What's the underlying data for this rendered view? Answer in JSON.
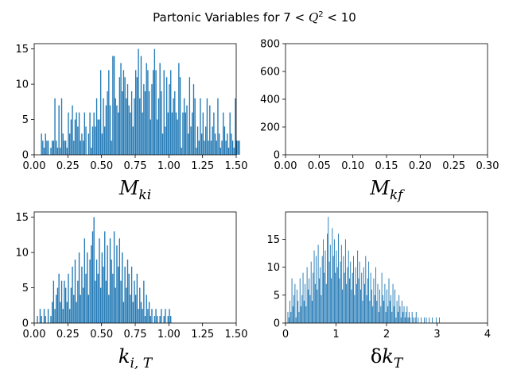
{
  "figure": {
    "title_pre": "Partonic Variables for 7 < ",
    "title_q": "Q",
    "title_sup": "2",
    "title_post": " < 10"
  },
  "chart_data": [
    {
      "type": "bar",
      "label_main": "M",
      "label_sub": "ki",
      "xlim": [
        0,
        1.5
      ],
      "ylim": [
        0,
        15.75
      ],
      "xticks": [
        "0.00",
        "0.25",
        "0.50",
        "0.75",
        "1.00",
        "1.25",
        "1.50"
      ],
      "yticks": [
        "0",
        "5",
        "10",
        "15"
      ],
      "bin_start": 0.05,
      "bin_width": 0.01,
      "values": [
        3,
        2,
        1,
        3,
        2,
        2,
        0,
        1,
        2,
        2,
        8,
        2,
        1,
        7,
        1,
        8,
        3,
        2,
        2,
        1,
        6,
        3,
        5,
        7,
        2,
        5,
        6,
        4,
        6,
        2,
        3,
        2,
        6,
        4,
        0,
        3,
        6,
        1,
        4,
        6,
        4,
        8,
        5,
        5,
        12,
        3,
        8,
        4,
        7,
        9,
        12,
        7,
        2,
        14,
        14,
        8,
        7,
        6,
        11,
        13,
        9,
        12,
        11,
        8,
        10,
        7,
        6,
        9,
        4,
        8,
        12,
        11,
        15,
        8,
        14,
        6,
        10,
        9,
        13,
        12,
        9,
        5,
        10,
        12,
        15,
        12,
        5,
        8,
        13,
        9,
        3,
        12,
        4,
        11,
        6,
        10,
        12,
        6,
        8,
        9,
        6,
        5,
        13,
        11,
        1,
        6,
        8,
        6,
        7,
        3,
        11,
        4,
        6,
        10,
        8,
        1,
        4,
        2,
        8,
        3,
        6,
        2,
        4,
        8,
        2,
        7,
        2,
        4,
        6,
        3,
        2,
        8,
        3,
        1,
        2,
        6,
        4,
        2,
        3,
        1,
        6,
        3,
        2,
        1,
        8,
        2,
        2,
        2
      ]
    },
    {
      "type": "bar",
      "label_main": "M",
      "label_sub": "kf",
      "xlim": [
        0,
        0.3
      ],
      "ylim": [
        0,
        800
      ],
      "xticks": [
        "0.00",
        "0.05",
        "0.10",
        "0.15",
        "0.20",
        "0.25",
        "0.30"
      ],
      "yticks": [
        "0",
        "200",
        "400",
        "600",
        "800"
      ],
      "bin_start": 0,
      "bin_width": 0.01,
      "values": []
    },
    {
      "type": "bar",
      "label_main": "k",
      "label_sub": "i, T",
      "xlim": [
        0,
        1.5
      ],
      "ylim": [
        0,
        15.75
      ],
      "xticks": [
        "0.00",
        "0.25",
        "0.50",
        "0.75",
        "1.00",
        "1.25",
        "1.50"
      ],
      "yticks": [
        "0",
        "5",
        "10",
        "15"
      ],
      "bin_start": 0.02,
      "bin_width": 0.01,
      "values": [
        1,
        0,
        2,
        1,
        0,
        2,
        1,
        0,
        2,
        0,
        1,
        3,
        6,
        2,
        4,
        5,
        7,
        3,
        6,
        2,
        6,
        5,
        3,
        7,
        2,
        5,
        8,
        4,
        9,
        3,
        6,
        10,
        4,
        8,
        5,
        12,
        7,
        10,
        4,
        9,
        11,
        13,
        15,
        6,
        9,
        7,
        12,
        5,
        10,
        8,
        13,
        6,
        11,
        4,
        12,
        9,
        7,
        13,
        5,
        11,
        8,
        12,
        6,
        10,
        3,
        8,
        5,
        9,
        7,
        4,
        8,
        3,
        6,
        4,
        7,
        2,
        5,
        3,
        2,
        6,
        1,
        4,
        2,
        3,
        1,
        2,
        0,
        1,
        2,
        1,
        0,
        1,
        2,
        0,
        1,
        2,
        0,
        1,
        2,
        1
      ]
    },
    {
      "type": "bar",
      "label_main": "δk",
      "label_sub": "T",
      "xlim": [
        0,
        4
      ],
      "ylim": [
        0,
        19.9
      ],
      "xticks": [
        "0",
        "1",
        "2",
        "3",
        "4"
      ],
      "yticks": [
        "0",
        "5",
        "10",
        "15"
      ],
      "bin_start": 0.04,
      "bin_width": 0.02,
      "values": [
        2,
        1,
        4,
        2,
        8,
        3,
        5,
        7,
        1,
        6,
        4,
        2,
        8,
        3,
        5,
        9,
        4,
        7,
        3,
        10,
        6,
        8,
        5,
        11,
        4,
        9,
        13,
        7,
        12,
        6,
        14,
        8,
        10,
        5,
        12,
        15,
        9,
        13,
        7,
        16,
        19,
        11,
        14,
        8,
        17,
        12,
        15,
        9,
        13,
        10,
        16,
        8,
        11,
        14,
        6,
        12,
        9,
        15,
        7,
        10,
        13,
        8,
        11,
        6,
        9,
        12,
        5,
        10,
        7,
        13,
        8,
        11,
        6,
        9,
        4,
        10,
        7,
        12,
        5,
        8,
        11,
        4,
        9,
        6,
        3,
        8,
        5,
        10,
        4,
        7,
        2,
        6,
        3,
        9,
        5,
        4,
        7,
        2,
        6,
        3,
        8,
        4,
        5,
        2,
        7,
        3,
        6,
        1,
        4,
        2,
        5,
        3,
        1,
        4,
        2,
        3,
        1,
        2,
        3,
        1,
        2,
        1,
        0,
        2,
        1,
        0,
        1,
        2,
        0,
        1,
        0,
        0,
        1,
        0,
        0,
        1,
        0,
        1,
        0,
        0,
        1,
        0,
        0,
        1,
        0,
        0,
        0,
        1,
        0,
        0,
        1
      ]
    }
  ]
}
